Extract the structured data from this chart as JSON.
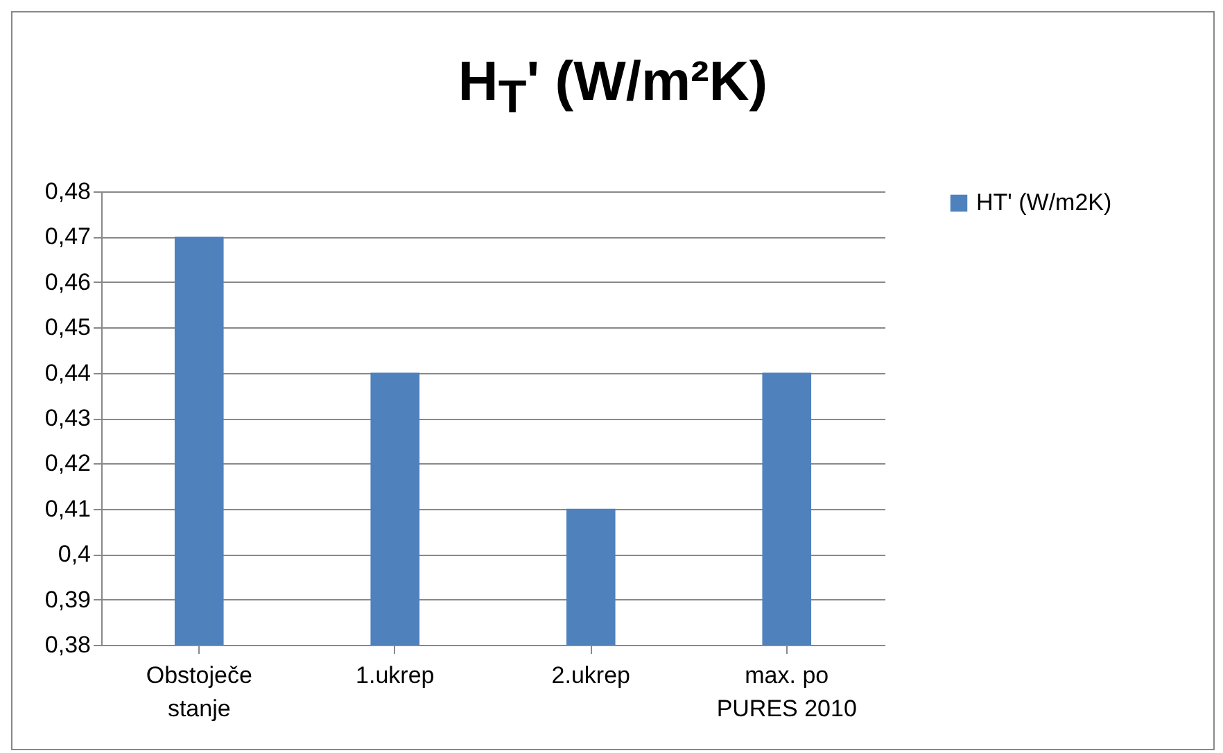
{
  "chart_data": {
    "type": "bar",
    "title": "H$_{T}$' (W/m²K)",
    "categories": [
      "Obstoječe stanje",
      "1.ukrep",
      "2.ukrep",
      "max. po PURES 2010"
    ],
    "series": [
      {
        "name": "HT' (W/m2K)",
        "color": "#4f81bd",
        "values": [
          0.47,
          0.44,
          0.41,
          0.44
        ]
      }
    ],
    "ylim": [
      0.38,
      0.48
    ],
    "yticks": [
      {
        "value": 0.38,
        "label": "0,38"
      },
      {
        "value": 0.39,
        "label": "0,39"
      },
      {
        "value": 0.4,
        "label": "0,4"
      },
      {
        "value": 0.41,
        "label": "0,41"
      },
      {
        "value": 0.42,
        "label": "0,42"
      },
      {
        "value": 0.43,
        "label": "0,43"
      },
      {
        "value": 0.44,
        "label": "0,44"
      },
      {
        "value": 0.45,
        "label": "0,45"
      },
      {
        "value": 0.46,
        "label": "0,46"
      },
      {
        "value": 0.47,
        "label": "0,47"
      },
      {
        "value": 0.48,
        "label": "0,48"
      }
    ],
    "grid": "y",
    "legend": "right"
  }
}
